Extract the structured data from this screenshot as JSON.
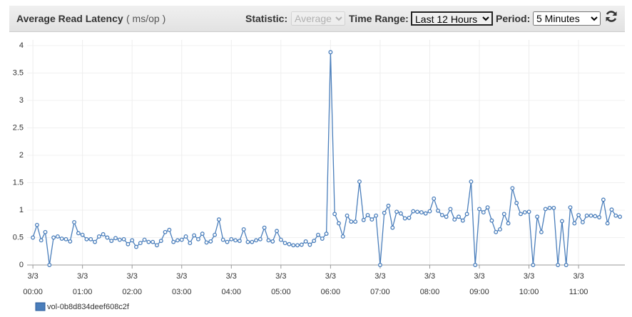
{
  "header": {
    "title": "Average Read Latency",
    "unit": "( ms/op )",
    "statistic_label": "Statistic:",
    "statistic_value": "Average",
    "time_range_label": "Time Range:",
    "time_range_value": "Last 12 Hours",
    "period_label": "Period:",
    "period_value": "5 Minutes"
  },
  "chart_data": {
    "type": "line",
    "x": [
      0,
      5,
      10,
      15,
      20,
      25,
      30,
      35,
      40,
      45,
      50,
      55,
      60,
      65,
      70,
      75,
      80,
      85,
      90,
      95,
      100,
      105,
      110,
      115,
      120,
      125,
      130,
      135,
      140,
      145,
      150,
      155,
      160,
      165,
      170,
      175,
      180,
      185,
      190,
      195,
      200,
      205,
      210,
      215,
      220,
      225,
      230,
      235,
      240,
      245,
      250,
      255,
      260,
      265,
      270,
      275,
      280,
      285,
      290,
      295,
      300,
      305,
      310,
      315,
      320,
      325,
      330,
      335,
      340,
      345,
      350,
      355,
      360,
      365,
      370,
      375,
      380,
      385,
      390,
      395,
      400,
      405,
      410,
      415,
      420,
      425,
      430,
      435,
      440,
      445,
      450,
      455,
      460,
      465,
      470,
      475,
      480,
      485,
      490,
      495,
      500,
      505,
      510,
      515,
      520,
      525,
      530,
      535,
      540,
      545,
      550,
      555,
      560,
      565,
      570,
      575,
      580,
      585,
      590,
      595,
      600,
      605,
      610,
      615,
      620,
      625,
      630,
      635,
      640,
      645,
      650,
      655,
      660,
      665,
      670,
      675,
      680,
      685,
      690,
      695,
      700,
      705,
      710
    ],
    "series": [
      {
        "name": "vol-0b8d834deef608c2f",
        "color": "#4a7ebb",
        "values": [
          0.5,
          0.73,
          0.45,
          0.6,
          0.0,
          0.5,
          0.52,
          0.48,
          0.47,
          0.43,
          0.78,
          0.58,
          0.55,
          0.47,
          0.47,
          0.42,
          0.52,
          0.56,
          0.5,
          0.44,
          0.49,
          0.46,
          0.47,
          0.38,
          0.45,
          0.33,
          0.4,
          0.46,
          0.42,
          0.42,
          0.36,
          0.44,
          0.6,
          0.64,
          0.42,
          0.45,
          0.46,
          0.52,
          0.4,
          0.54,
          0.47,
          0.57,
          0.41,
          0.43,
          0.55,
          0.83,
          0.46,
          0.42,
          0.47,
          0.45,
          0.44,
          0.65,
          0.42,
          0.42,
          0.45,
          0.47,
          0.68,
          0.45,
          0.43,
          0.62,
          0.46,
          0.4,
          0.38,
          0.36,
          0.36,
          0.37,
          0.43,
          0.37,
          0.44,
          0.55,
          0.48,
          0.57,
          3.88,
          0.93,
          0.76,
          0.52,
          0.9,
          0.79,
          0.79,
          1.52,
          0.82,
          0.91,
          0.83,
          0.9,
          0.0,
          0.95,
          1.08,
          0.68,
          0.97,
          0.94,
          0.85,
          0.86,
          0.98,
          0.97,
          0.96,
          0.94,
          0.98,
          1.21,
          0.99,
          0.91,
          0.88,
          1.02,
          0.83,
          0.88,
          0.81,
          0.93,
          1.52,
          0.0,
          1.02,
          0.96,
          1.05,
          0.81,
          0.6,
          0.65,
          0.93,
          0.76,
          1.4,
          1.13,
          0.93,
          0.96,
          0.97,
          0.0,
          0.88,
          0.6,
          1.02,
          1.04,
          1.04,
          0.0,
          0.8,
          0.0,
          1.05,
          0.76,
          0.91,
          0.78,
          0.9,
          0.9,
          0.89,
          0.87,
          1.19,
          0.76,
          1.01,
          0.9,
          0.88
        ]
      }
    ],
    "xlim": [
      -7,
      716
    ],
    "xticks": [
      {
        "value": 0,
        "date": "3/3",
        "label": "00:00"
      },
      {
        "value": 60,
        "date": "3/3",
        "label": "01:00"
      },
      {
        "value": 120,
        "date": "3/3",
        "label": "02:00"
      },
      {
        "value": 180,
        "date": "3/3",
        "label": "03:00"
      },
      {
        "value": 240,
        "date": "3/3",
        "label": "04:00"
      },
      {
        "value": 300,
        "date": "3/3",
        "label": "05:00"
      },
      {
        "value": 360,
        "date": "3/3",
        "label": "06:00"
      },
      {
        "value": 420,
        "date": "3/3",
        "label": "07:00"
      },
      {
        "value": 480,
        "date": "3/3",
        "label": "08:00"
      },
      {
        "value": 540,
        "date": "3/3",
        "label": "09:00"
      },
      {
        "value": 600,
        "date": "3/3",
        "label": "10:00"
      },
      {
        "value": 660,
        "date": "3/3",
        "label": "11:00"
      }
    ],
    "ylim": [
      0,
      4
    ],
    "yticks": [
      0,
      0.5,
      1,
      1.5,
      2,
      2.5,
      3,
      3.5,
      4
    ],
    "grid": true
  }
}
